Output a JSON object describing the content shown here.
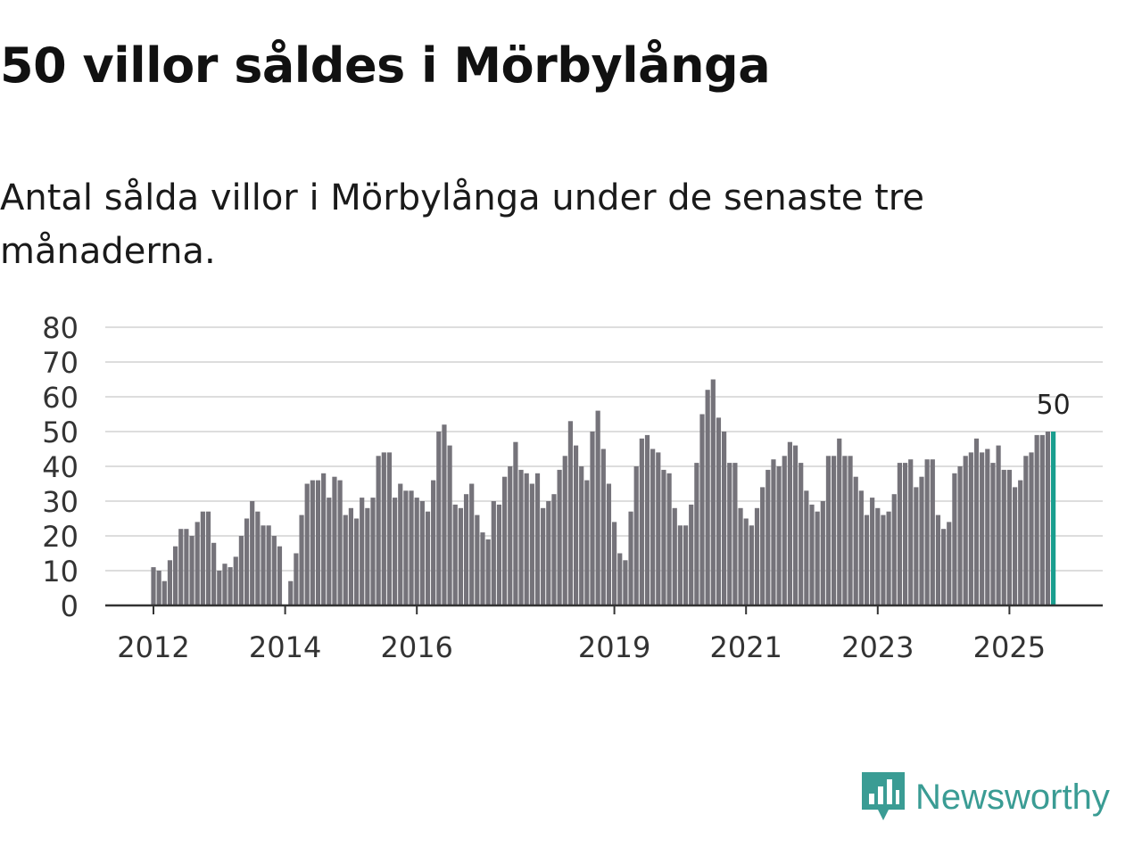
{
  "title": "50 villor såldes i Mörbylånga",
  "subtitle": "Antal sålda villor i Mörbylånga under de senaste tre månaderna.",
  "logo": {
    "text": "Newsworthy",
    "color": "#3a9c94"
  },
  "chart_data": {
    "type": "bar",
    "start": "2012-01",
    "frequency": "monthly",
    "ylim": [
      0,
      80
    ],
    "yticks": [
      0,
      10,
      20,
      30,
      40,
      50,
      60,
      70,
      80
    ],
    "xticks": [
      "2012",
      "2014",
      "2016",
      "2019",
      "2021",
      "2023",
      "2025"
    ],
    "bar_color": "#75737a",
    "highlight_color": "#1a9e8f",
    "annotation": "50",
    "values": [
      11,
      10,
      7,
      13,
      17,
      22,
      22,
      20,
      24,
      27,
      27,
      18,
      10,
      12,
      11,
      14,
      20,
      25,
      30,
      27,
      23,
      23,
      20,
      17,
      0,
      7,
      15,
      26,
      35,
      36,
      36,
      38,
      31,
      37,
      36,
      26,
      28,
      25,
      31,
      28,
      31,
      43,
      44,
      44,
      31,
      35,
      33,
      33,
      31,
      30,
      27,
      36,
      50,
      52,
      46,
      29,
      28,
      32,
      35,
      26,
      21,
      19,
      30,
      29,
      37,
      40,
      47,
      39,
      38,
      35,
      38,
      28,
      30,
      32,
      39,
      43,
      53,
      46,
      40,
      36,
      50,
      56,
      45,
      35,
      24,
      15,
      13,
      27,
      40,
      48,
      49,
      45,
      44,
      39,
      38,
      28,
      23,
      23,
      29,
      41,
      55,
      62,
      65,
      54,
      50,
      41,
      41,
      28,
      25,
      23,
      28,
      34,
      39,
      42,
      40,
      43,
      47,
      46,
      41,
      33,
      29,
      27,
      30,
      43,
      43,
      48,
      43,
      43,
      37,
      33,
      26,
      31,
      28,
      26,
      27,
      32,
      41,
      41,
      42,
      34,
      37,
      42,
      42,
      26,
      22,
      24,
      38,
      40,
      43,
      44,
      48,
      44,
      45,
      41,
      46,
      39,
      39,
      34,
      36,
      43,
      44,
      49,
      49,
      50,
      50
    ]
  }
}
